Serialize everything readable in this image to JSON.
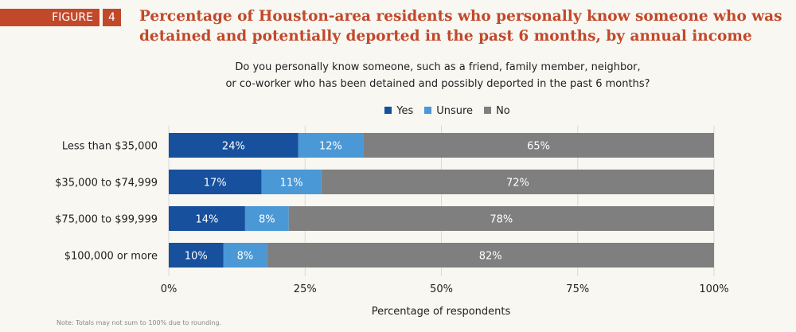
{
  "figure_label": "FIGURE",
  "figure_number": "4",
  "title": "Percentage of Houston-area residents who personally know someone who was detained and potentially deported in the past 6 months, by annual income",
  "subtitle_line1": "Do you personally know someone, such as a friend, family member, neighbor,",
  "subtitle_line2": "or co-worker who has been detained and possibly deported in the past 6 months?",
  "note": "Note: Totals may not sum to 100% due to rounding.",
  "colors": {
    "Yes": "#17509c",
    "Unsure": "#4a98d6",
    "No": "#7f7f7f",
    "title": "#c2482a"
  },
  "chart_data": {
    "type": "bar",
    "orientation": "horizontal",
    "stacked": true,
    "categories": [
      "Less than $35,000",
      "$35,000 to $74,999",
      "$75,000 to $99,999",
      "$100,000 or more"
    ],
    "series": [
      {
        "name": "Yes",
        "values": [
          24,
          17,
          14,
          10
        ]
      },
      {
        "name": "Unsure",
        "values": [
          12,
          11,
          8,
          8
        ]
      },
      {
        "name": "No",
        "values": [
          65,
          72,
          78,
          82
        ]
      }
    ],
    "xlabel": "Percentage of respondents",
    "xlim": [
      0,
      100
    ],
    "xticks": [
      "0%",
      "25%",
      "50%",
      "75%",
      "100%"
    ],
    "legend_placement": "top",
    "grid": true
  }
}
